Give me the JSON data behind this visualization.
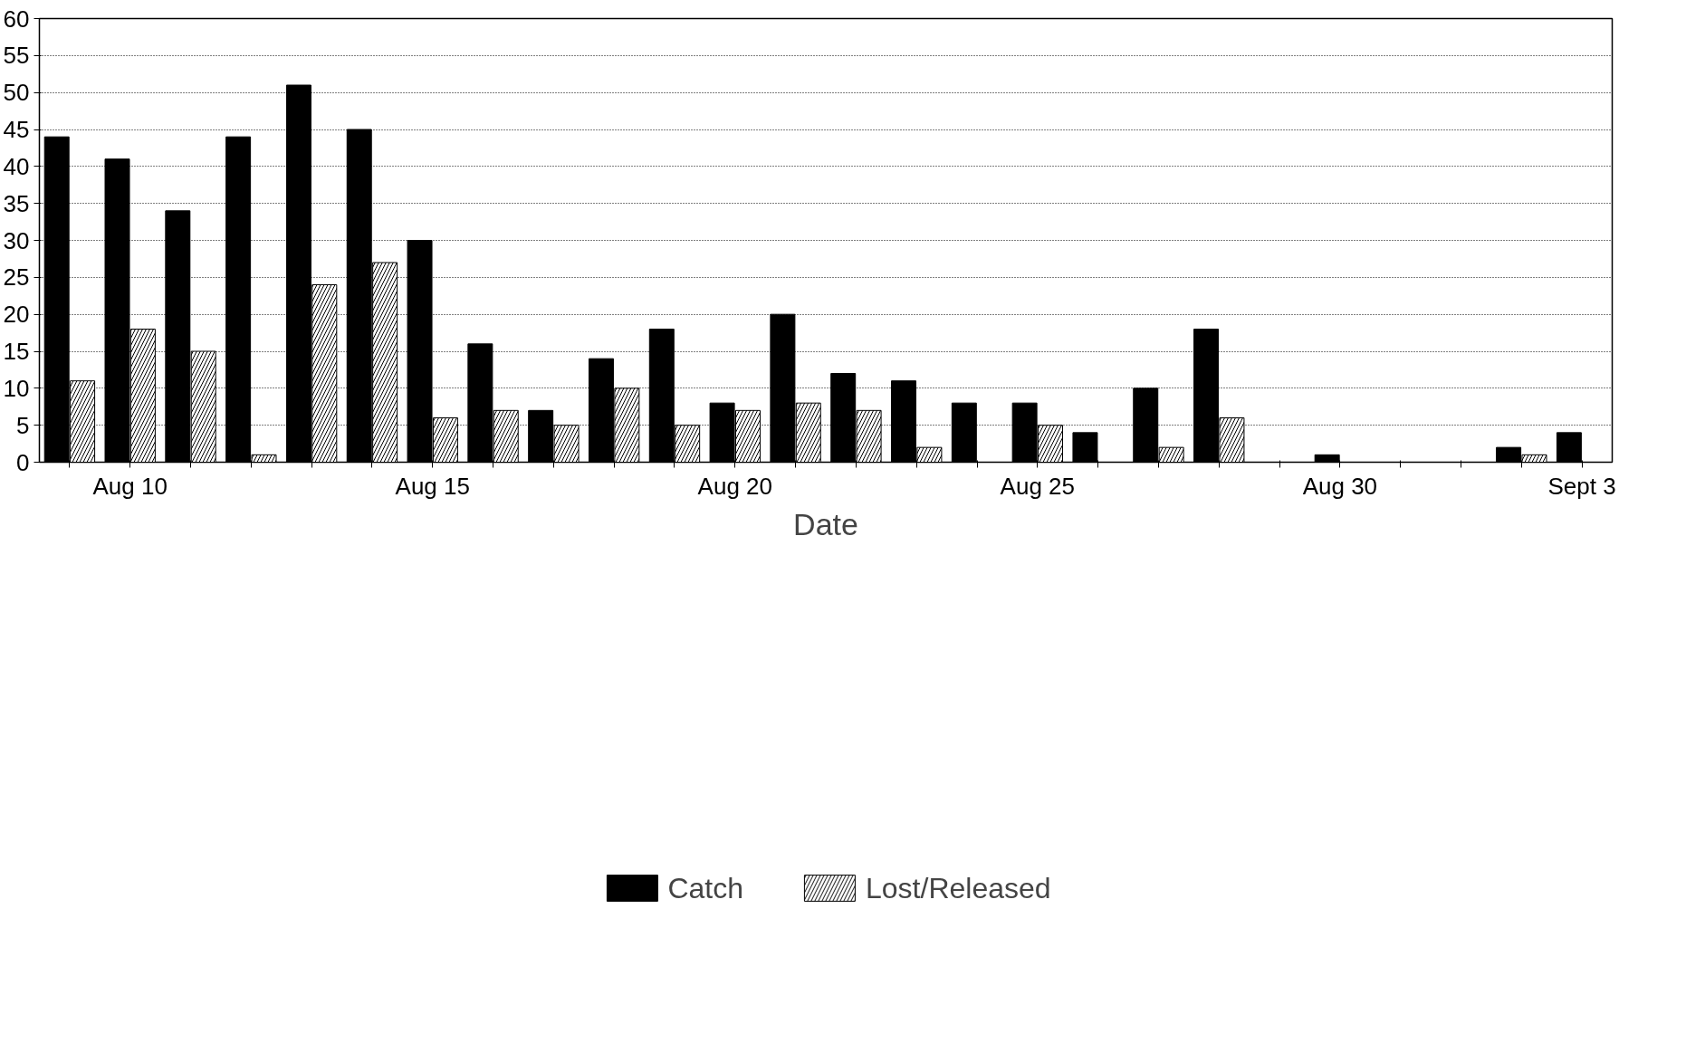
{
  "chart_data": {
    "type": "bar",
    "xlabel": "Date",
    "categories": [
      null,
      "Aug 10",
      null,
      null,
      null,
      null,
      "Aug 15",
      null,
      null,
      null,
      null,
      "Aug 20",
      null,
      null,
      null,
      null,
      "Aug 25",
      null,
      null,
      null,
      null,
      "Aug 30",
      null,
      null,
      null,
      "Sept 3"
    ],
    "series": [
      {
        "name": "Catch",
        "color": "#000000",
        "values": [
          44,
          41,
          34,
          44,
          51,
          45,
          30,
          16,
          7,
          14,
          18,
          8,
          20,
          12,
          11,
          8,
          8,
          4,
          10,
          18,
          0,
          1,
          0,
          0,
          2,
          4
        ]
      },
      {
        "name": "Lost/Released",
        "color": "#ffffff",
        "values": [
          11,
          18,
          15,
          1,
          24,
          27,
          6,
          7,
          5,
          10,
          5,
          7,
          8,
          7,
          2,
          0,
          5,
          0,
          2,
          6,
          0,
          0,
          0,
          0,
          1,
          0
        ]
      }
    ],
    "ylim": [
      0,
      60
    ],
    "yticks": [
      0,
      5,
      10,
      15,
      20,
      25,
      30,
      35,
      40,
      45,
      50,
      55,
      60
    ],
    "grid": "y",
    "legend": "bottom"
  }
}
